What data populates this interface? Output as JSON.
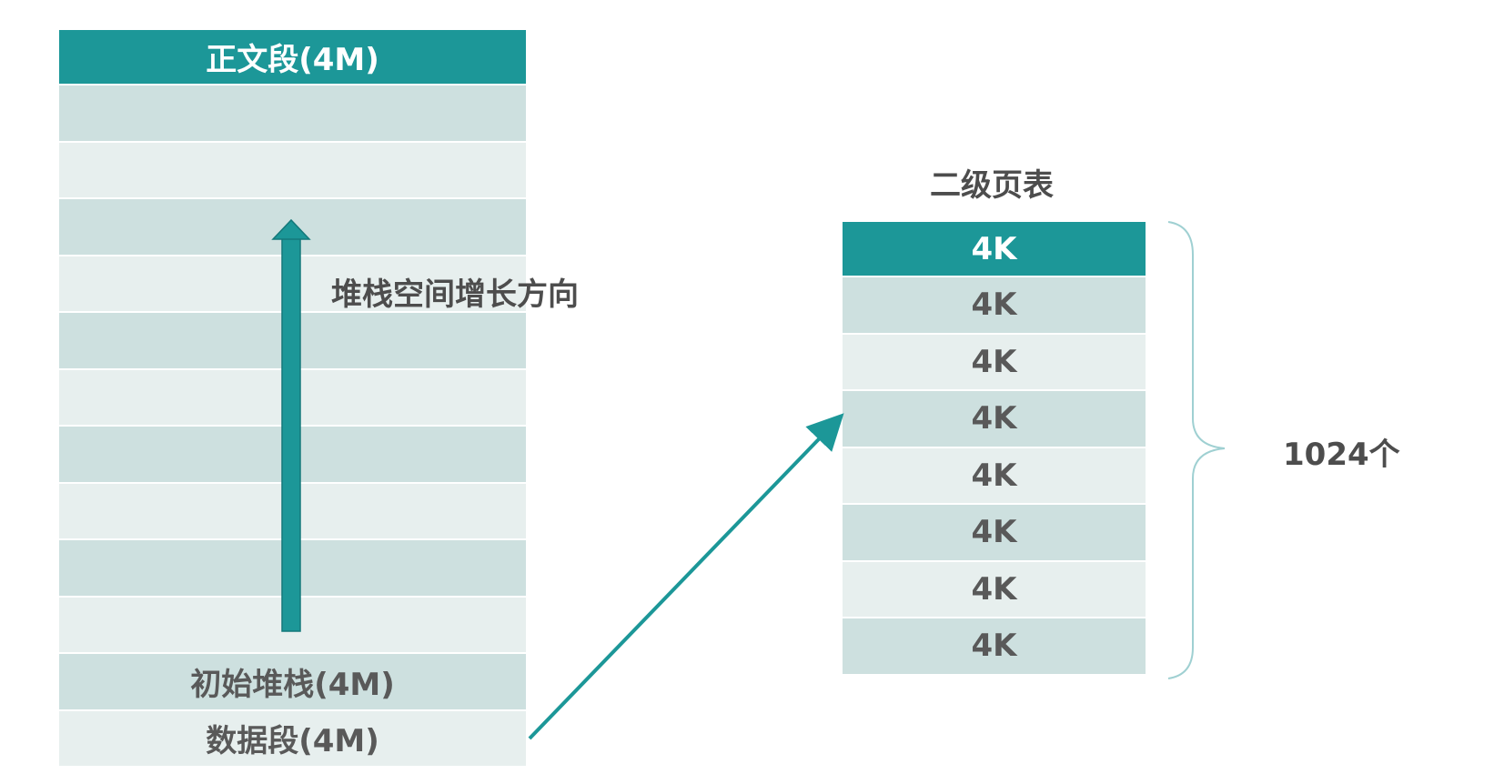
{
  "address_space": {
    "header": "正文段(4M)",
    "empty_rows": 10,
    "initial_stack": "初始堆栈(4M)",
    "data_segment": "数据段(4M)"
  },
  "stack_growth_label": "堆栈空间增长方向",
  "page_table": {
    "title": "二级页表",
    "entries": [
      "4K",
      "4K",
      "4K",
      "4K",
      "4K",
      "4K",
      "4K",
      "4K"
    ],
    "count_label": "1024个"
  },
  "colors": {
    "teal": "#1c9798",
    "row_dark": "#cde0df",
    "row_light": "#e7efee",
    "text": "#595959",
    "brace": "#9fd0d2"
  }
}
